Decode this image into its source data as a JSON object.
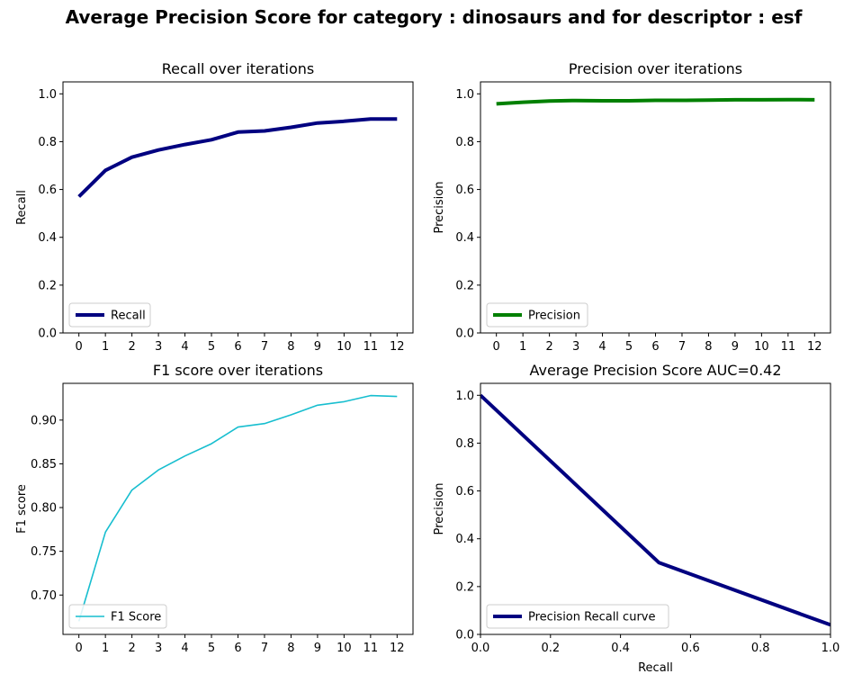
{
  "figure": {
    "title": "Average Precision Score for category : dinosaurs and for descriptor : esf"
  },
  "chart_data": [
    {
      "type": "line",
      "title": "Recall over iterations",
      "xlabel": "",
      "ylabel": "Recall",
      "x": [
        0,
        1,
        2,
        3,
        4,
        5,
        6,
        7,
        8,
        9,
        10,
        11,
        12
      ],
      "xticks": [
        "0",
        "1",
        "2",
        "3",
        "4",
        "5",
        "6",
        "7",
        "8",
        "9",
        "10",
        "11",
        "12"
      ],
      "xlim": [
        -0.6,
        12.6
      ],
      "ylim": [
        0,
        1.05
      ],
      "yticks": [
        "0.0",
        "0.2",
        "0.4",
        "0.6",
        "0.8",
        "1.0"
      ],
      "ytick_values": [
        0,
        0.2,
        0.4,
        0.6,
        0.8,
        1.0
      ],
      "legend_position": "lower-left",
      "series": [
        {
          "name": "Recall",
          "color": "#000080",
          "linewidth": 4,
          "values": [
            0.57,
            0.68,
            0.735,
            0.765,
            0.788,
            0.808,
            0.84,
            0.845,
            0.86,
            0.878,
            0.885,
            0.895,
            0.895
          ]
        }
      ]
    },
    {
      "type": "line",
      "title": "Precision over iterations",
      "xlabel": "",
      "ylabel": "Precision",
      "x": [
        0,
        1,
        2,
        3,
        4,
        5,
        6,
        7,
        8,
        9,
        10,
        11,
        12
      ],
      "xticks": [
        "0",
        "1",
        "2",
        "3",
        "4",
        "5",
        "6",
        "7",
        "8",
        "9",
        "10",
        "11",
        "12"
      ],
      "xlim": [
        -0.6,
        12.6
      ],
      "ylim": [
        0,
        1.05
      ],
      "yticks": [
        "0.0",
        "0.2",
        "0.4",
        "0.6",
        "0.8",
        "1.0"
      ],
      "ytick_values": [
        0,
        0.2,
        0.4,
        0.6,
        0.8,
        1.0
      ],
      "legend_position": "lower-left",
      "series": [
        {
          "name": "Precision",
          "color": "#008000",
          "linewidth": 4,
          "values": [
            0.958,
            0.965,
            0.97,
            0.972,
            0.971,
            0.971,
            0.973,
            0.973,
            0.974,
            0.975,
            0.975,
            0.976,
            0.975
          ]
        }
      ]
    },
    {
      "type": "line",
      "title": "F1 score over iterations",
      "xlabel": "",
      "ylabel": "F1 score",
      "x": [
        0,
        1,
        2,
        3,
        4,
        5,
        6,
        7,
        8,
        9,
        10,
        11,
        12
      ],
      "xticks": [
        "0",
        "1",
        "2",
        "3",
        "4",
        "5",
        "6",
        "7",
        "8",
        "9",
        "10",
        "11",
        "12"
      ],
      "xlim": [
        -0.6,
        12.6
      ],
      "ylim": [
        0.655,
        0.942
      ],
      "yticks": [
        "0.70",
        "0.75",
        "0.80",
        "0.85",
        "0.90"
      ],
      "ytick_values": [
        0.7,
        0.75,
        0.8,
        0.85,
        0.9
      ],
      "legend_position": "lower-left",
      "series": [
        {
          "name": "F1 Score",
          "color": "#17becf",
          "linewidth": 1.6,
          "values": [
            0.67,
            0.772,
            0.82,
            0.843,
            0.859,
            0.873,
            0.892,
            0.896,
            0.906,
            0.917,
            0.921,
            0.928,
            0.927
          ]
        }
      ]
    },
    {
      "type": "line",
      "title": "Average Precision Score AUC=0.42",
      "xlabel": "Recall",
      "ylabel": "Precision",
      "xlim": [
        0,
        1.0
      ],
      "ylim": [
        0,
        1.05
      ],
      "xticks": [
        "0.0",
        "0.2",
        "0.4",
        "0.6",
        "0.8",
        "1.0"
      ],
      "xtick_values": [
        0,
        0.2,
        0.4,
        0.6,
        0.8,
        1.0
      ],
      "yticks": [
        "0.0",
        "0.2",
        "0.4",
        "0.6",
        "0.8",
        "1.0"
      ],
      "ytick_values": [
        0,
        0.2,
        0.4,
        0.6,
        0.8,
        1.0
      ],
      "legend_position": "lower-left",
      "series": [
        {
          "name": "Precision Recall curve",
          "color": "#000080",
          "linewidth": 4,
          "points": [
            [
              0,
              1.0
            ],
            [
              0.51,
              0.3
            ],
            [
              1.0,
              0.04
            ]
          ]
        }
      ]
    }
  ]
}
